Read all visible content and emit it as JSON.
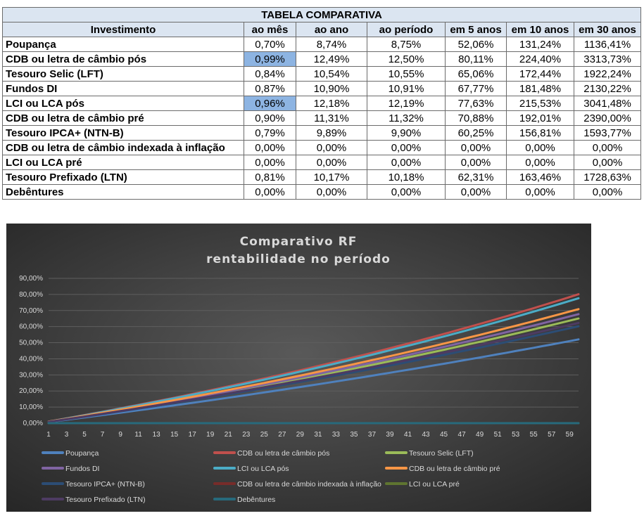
{
  "table": {
    "title": "TABELA COMPARATIVA",
    "headers": [
      "Investimento",
      "ao mês",
      "ao ano",
      "ao período",
      "em 5 anos",
      "em 10 anos",
      "em 30 anos"
    ],
    "rows": [
      {
        "cells": [
          "Poupança",
          "0,70%",
          "8,74%",
          "8,75%",
          "52,06%",
          "131,24%",
          "1136,41%"
        ]
      },
      {
        "cells": [
          "CDB ou letra de câmbio pós",
          "0,99%",
          "12,49%",
          "12,50%",
          "80,11%",
          "224,40%",
          "3313,73%"
        ],
        "highlight": true
      },
      {
        "cells": [
          "Tesouro Selic (LFT)",
          "0,84%",
          "10,54%",
          "10,55%",
          "65,06%",
          "172,44%",
          "1922,24%"
        ]
      },
      {
        "cells": [
          "Fundos DI",
          "0,87%",
          "10,90%",
          "10,91%",
          "67,77%",
          "181,48%",
          "2130,22%"
        ]
      },
      {
        "cells": [
          "LCI ou LCA pós",
          "0,96%",
          "12,18%",
          "12,19%",
          "77,63%",
          "215,53%",
          "3041,48%"
        ],
        "highlight": true
      },
      {
        "cells": [
          "CDB ou letra de câmbio pré",
          "0,90%",
          "11,31%",
          "11,32%",
          "70,88%",
          "192,01%",
          "2390,00%"
        ]
      },
      {
        "cells": [
          "Tesouro IPCA+ (NTN-B)",
          "0,79%",
          "9,89%",
          "9,90%",
          "60,25%",
          "156,81%",
          "1593,77%"
        ]
      },
      {
        "cells": [
          "CDB ou letra de câmbio indexada à inflação",
          "0,00%",
          "0,00%",
          "0,00%",
          "0,00%",
          "0,00%",
          "0,00%"
        ]
      },
      {
        "cells": [
          "LCI ou LCA pré",
          "0,00%",
          "0,00%",
          "0,00%",
          "0,00%",
          "0,00%",
          "0,00%"
        ]
      },
      {
        "cells": [
          "Tesouro Prefixado (LTN)",
          "0,81%",
          "10,17%",
          "10,18%",
          "62,31%",
          "163,46%",
          "1728,63%"
        ]
      },
      {
        "cells": [
          "Debêntures",
          "0,00%",
          "0,00%",
          "0,00%",
          "0,00%",
          "0,00%",
          "0,00%"
        ]
      }
    ]
  },
  "chart_data": {
    "type": "line",
    "title": "Comparativo RF",
    "subtitle": "rentabilidade no período",
    "xlabel": "",
    "ylabel": "",
    "x_range": [
      1,
      60
    ],
    "x_ticks": [
      "1",
      "3",
      "5",
      "7",
      "9",
      "11",
      "13",
      "15",
      "17",
      "19",
      "21",
      "23",
      "25",
      "27",
      "29",
      "31",
      "33",
      "35",
      "37",
      "39",
      "41",
      "43",
      "45",
      "47",
      "49",
      "51",
      "53",
      "55",
      "57",
      "59"
    ],
    "y_ticks": [
      "0,00%",
      "10,00%",
      "20,00%",
      "30,00%",
      "40,00%",
      "50,00%",
      "60,00%",
      "70,00%",
      "80,00%",
      "90,00%"
    ],
    "ylim": [
      0,
      90
    ],
    "grid": true,
    "legend_position": "bottom",
    "series": [
      {
        "name": "Poupança",
        "monthly_rate": 0.7,
        "final_value": 52.06,
        "color": "#4f81bd"
      },
      {
        "name": "CDB ou letra de câmbio pós",
        "monthly_rate": 0.99,
        "final_value": 80.11,
        "color": "#c0504d"
      },
      {
        "name": "Tesouro Selic (LFT)",
        "monthly_rate": 0.84,
        "final_value": 65.06,
        "color": "#9bbb59"
      },
      {
        "name": "Fundos DI",
        "monthly_rate": 0.87,
        "final_value": 67.77,
        "color": "#8064a2"
      },
      {
        "name": "LCI ou LCA pós",
        "monthly_rate": 0.96,
        "final_value": 77.63,
        "color": "#4bacc6"
      },
      {
        "name": "CDB ou letra de câmbio pré",
        "monthly_rate": 0.9,
        "final_value": 70.88,
        "color": "#f79646"
      },
      {
        "name": "Tesouro IPCA+ (NTN-B)",
        "monthly_rate": 0.79,
        "final_value": 60.25,
        "color": "#2c4d75"
      },
      {
        "name": "CDB ou letra de câmbio indexada à inflação",
        "monthly_rate": 0.0,
        "final_value": 0.0,
        "color": "#772c2a"
      },
      {
        "name": "LCI ou LCA pré",
        "monthly_rate": 0.0,
        "final_value": 0.0,
        "color": "#5f7530"
      },
      {
        "name": "Tesouro Prefixado (LTN)",
        "monthly_rate": 0.81,
        "final_value": 62.31,
        "color": "#4d3b62"
      },
      {
        "name": "Debêntures",
        "monthly_rate": 0.0,
        "final_value": 0.0,
        "color": "#276a7c"
      }
    ]
  }
}
